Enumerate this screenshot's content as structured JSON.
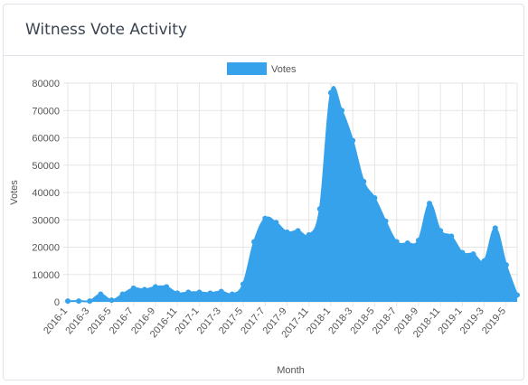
{
  "card": {
    "title": "Witness Vote Activity"
  },
  "colors": {
    "series": "#36a2eb",
    "grid": "#e5e5e5"
  },
  "chart_data": {
    "type": "area",
    "title": "",
    "xlabel": "Month",
    "ylabel": "Votes",
    "ylim": [
      0,
      80000
    ],
    "yticks": [
      0,
      10000,
      20000,
      30000,
      40000,
      50000,
      60000,
      70000,
      80000
    ],
    "legend": {
      "position": "top",
      "entries": [
        "Votes"
      ]
    },
    "grid": true,
    "x": [
      "2016-1",
      "2016-2",
      "2016-3",
      "2016-4",
      "2016-5",
      "2016-6",
      "2016-7",
      "2016-8",
      "2016-9",
      "2016-10",
      "2016-11",
      "2016-12",
      "2017-1",
      "2017-2",
      "2017-3",
      "2017-4",
      "2017-5",
      "2017-6",
      "2017-7",
      "2017-8",
      "2017-9",
      "2017-10",
      "2017-11",
      "2017-12",
      "2018-1",
      "2018-2",
      "2018-3",
      "2018-4",
      "2018-5",
      "2018-6",
      "2018-7",
      "2018-8",
      "2018-9",
      "2018-10",
      "2018-11",
      "2018-12",
      "2019-1",
      "2019-2",
      "2019-3",
      "2019-4",
      "2019-5",
      "2019-6"
    ],
    "series": [
      {
        "name": "Votes",
        "values": [
          300,
          300,
          300,
          2800,
          600,
          2800,
          5000,
          4500,
          5500,
          5500,
          3200,
          3500,
          3500,
          3200,
          3800,
          2800,
          6500,
          22000,
          30500,
          29000,
          25500,
          26000,
          24500,
          34000,
          76500,
          70000,
          59000,
          44000,
          38000,
          29500,
          22000,
          21500,
          22500,
          36000,
          26000,
          24000,
          18000,
          17500,
          15000,
          27000,
          13500,
          2500
        ]
      }
    ]
  }
}
